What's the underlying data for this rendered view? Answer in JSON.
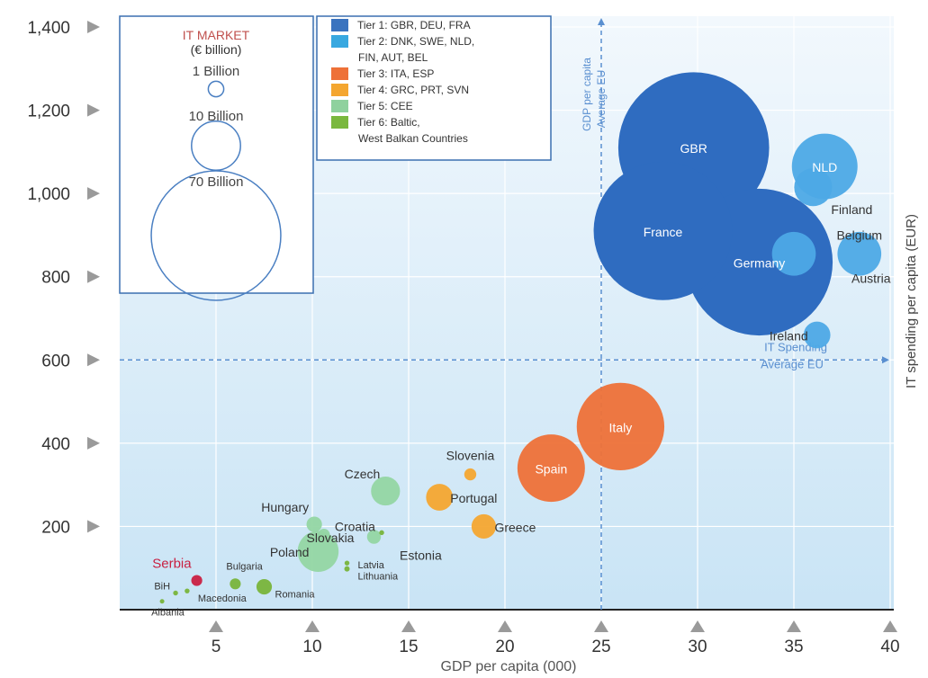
{
  "chart_data": {
    "type": "scatter",
    "xlabel": "GDP per capita (000)",
    "ylabel": "IT spending per capita (EUR)",
    "xlim": [
      0,
      40
    ],
    "ylim": [
      0,
      1400
    ],
    "x_ticks": [
      5,
      10,
      15,
      20,
      25,
      30,
      35,
      40
    ],
    "y_ticks": [
      200,
      400,
      600,
      800,
      1000,
      1200,
      1400
    ],
    "y_tick_labels": [
      "200",
      "400",
      "600",
      "800",
      "1,000",
      "1,200",
      "1,400"
    ],
    "grid": true,
    "reference_lines": [
      {
        "axis": "x",
        "value": 25,
        "label_lines": [
          "GDP per capita",
          "Average EU"
        ]
      },
      {
        "axis": "y",
        "value": 600,
        "label_lines": [
          "IT Spending",
          "Average EU"
        ]
      }
    ],
    "size_legend": {
      "title_lines": [
        "IT MARKET",
        "(€ billion)"
      ],
      "entries": [
        {
          "label": "1 Billion",
          "market": 1
        },
        {
          "label": "10 Billion",
          "market": 10
        },
        {
          "label": "70 Billion",
          "market": 70
        }
      ]
    },
    "tier_legend": [
      {
        "lines": [
          "Tier 1: GBR, DEU, FRA"
        ],
        "color": "#3a73bf"
      },
      {
        "lines": [
          "Tier 2: DNK, SWE, NLD,",
          "FIN, AUT, BEL"
        ],
        "color": "#38a8e0"
      },
      {
        "lines": [
          "Tier 3: ITA, ESP"
        ],
        "color": "#ee7138"
      },
      {
        "lines": [
          "Tier 4: GRC, PRT, SVN"
        ],
        "color": "#f4a630"
      },
      {
        "lines": [
          "Tier 5: CEE"
        ],
        "color": "#8fd19e"
      },
      {
        "lines": [
          "Tier 6: Baltic,",
          "West Balkan Countries"
        ],
        "color": "#7ab83e"
      }
    ],
    "tier_colors": {
      "1": "#2f6cc0",
      "2": "#4da9e6",
      "3": "#ee7138",
      "4": "#f4a630",
      "5": "#94d6a3",
      "6": "#78b43a",
      "serbia": "#c92042"
    },
    "points": [
      {
        "label": "GBR",
        "tier": 1,
        "x": 29.8,
        "y": 1110,
        "market": 95,
        "label_pos": "inside"
      },
      {
        "label": "France",
        "tier": 1,
        "x": 28.2,
        "y": 910,
        "market": 80,
        "label_pos": "inside"
      },
      {
        "label": "Germany",
        "tier": 1,
        "x": 33.2,
        "y": 835,
        "market": 90,
        "label_pos": "inside"
      },
      {
        "label": "NLD",
        "tier": 2,
        "x": 36.6,
        "y": 1065,
        "market": 18,
        "label_pos": "inside"
      },
      {
        "label": "Finland",
        "tier": 2,
        "x": 36.0,
        "y": 1015,
        "market": 6,
        "label_pos": "below-right"
      },
      {
        "label": "Belgium",
        "tier": 2,
        "x": 38.4,
        "y": 855,
        "market": 8,
        "label_pos": "above"
      },
      {
        "label": "Austria",
        "tier": 2,
        "x": 35.0,
        "y": 855,
        "market": 8,
        "label_pos": "below-far-right"
      },
      {
        "label": "Ireland",
        "tier": 2,
        "x": 36.2,
        "y": 660,
        "market": 3,
        "label_pos": "left"
      },
      {
        "label": "Italy",
        "tier": 3,
        "x": 26.0,
        "y": 440,
        "market": 32,
        "label_pos": "inside"
      },
      {
        "label": "Spain",
        "tier": 3,
        "x": 22.4,
        "y": 340,
        "market": 19,
        "label_pos": "inside"
      },
      {
        "label": "Slovenia",
        "tier": 4,
        "x": 18.2,
        "y": 325,
        "market": 0.6,
        "label_pos": "above"
      },
      {
        "label": "Portugal",
        "tier": 4,
        "x": 16.6,
        "y": 270,
        "market": 3,
        "label_pos": "right"
      },
      {
        "label": "Greece",
        "tier": 4,
        "x": 18.9,
        "y": 200,
        "market": 2.5,
        "label_pos": "right"
      },
      {
        "label": "Czech",
        "tier": 5,
        "x": 13.8,
        "y": 285,
        "market": 3.5,
        "label_pos": "above-left"
      },
      {
        "label": "Hungary",
        "tier": 5,
        "x": 10.1,
        "y": 205,
        "market": 1.0,
        "label_pos": "above-left"
      },
      {
        "label": "Croatia",
        "tier": 5,
        "x": 10.6,
        "y": 180,
        "market": 0.6,
        "label_pos": "right-up"
      },
      {
        "label": "Slovakia",
        "tier": 5,
        "x": 13.2,
        "y": 175,
        "market": 0.8,
        "label_pos": "far-left"
      },
      {
        "label": "Estonia",
        "tier": 6,
        "x": 13.6,
        "y": 185,
        "market": 0.1,
        "label_pos": "below-right"
      },
      {
        "label": "Poland",
        "tier": 5,
        "x": 10.3,
        "y": 140,
        "market": 7,
        "label_pos": "left"
      },
      {
        "label": "Latvia",
        "tier": 6,
        "x": 11.8,
        "y": 112,
        "market": 0.1,
        "label_pos": "right"
      },
      {
        "label": "Lithuania",
        "tier": 6,
        "x": 11.8,
        "y": 98,
        "market": 0.12,
        "label_pos": "right-down"
      },
      {
        "label": "Serbia",
        "tier": "serbia",
        "x": 4.0,
        "y": 70,
        "market": 0.5,
        "label_pos": "above-left"
      },
      {
        "label": "Bulgaria",
        "tier": 6,
        "x": 6.0,
        "y": 62,
        "market": 0.5,
        "label_pos": "above-right"
      },
      {
        "label": "Romania",
        "tier": 6,
        "x": 7.5,
        "y": 55,
        "market": 1.0,
        "label_pos": "right-down"
      },
      {
        "label": "Macedonia",
        "tier": 6,
        "x": 3.5,
        "y": 45,
        "market": 0.1,
        "label_pos": "right-down"
      },
      {
        "label": "BiH",
        "tier": 6,
        "x": 2.9,
        "y": 40,
        "market": 0.1,
        "label_pos": "left-up"
      },
      {
        "label": "Albania",
        "tier": 6,
        "x": 2.2,
        "y": 20,
        "market": 0.06,
        "label_pos": "below-left"
      }
    ]
  }
}
